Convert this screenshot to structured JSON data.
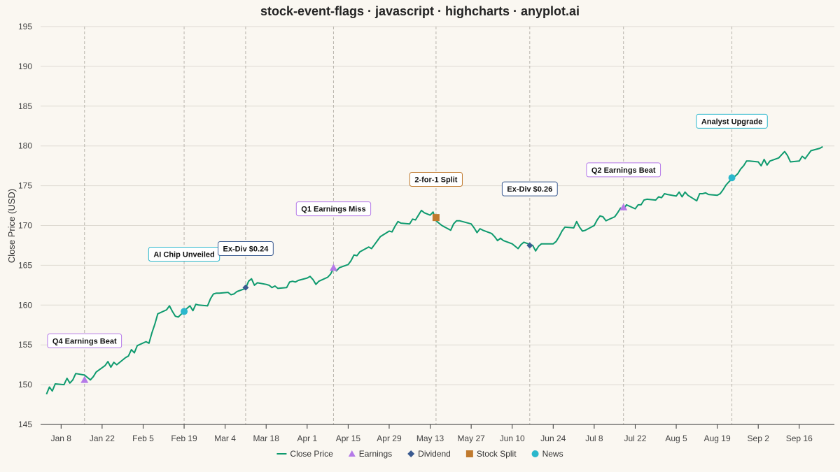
{
  "chart_data": {
    "type": "line",
    "title": "stock-event-flags · javascript · highcharts · anyplot.ai",
    "xlabel": "",
    "ylabel": "Close Price (USD)",
    "ylim": [
      145,
      195
    ],
    "yticks": [
      145,
      150,
      155,
      160,
      165,
      170,
      175,
      180,
      185,
      190,
      195
    ],
    "xlim": [
      "2024-01-01",
      "2024-09-28"
    ],
    "xticks": [
      {
        "date": "2024-01-08",
        "label": "Jan 8"
      },
      {
        "date": "2024-01-22",
        "label": "Jan 22"
      },
      {
        "date": "2024-02-05",
        "label": "Feb 5"
      },
      {
        "date": "2024-02-19",
        "label": "Feb 19"
      },
      {
        "date": "2024-03-04",
        "label": "Mar 4"
      },
      {
        "date": "2024-03-18",
        "label": "Mar 18"
      },
      {
        "date": "2024-04-01",
        "label": "Apr 1"
      },
      {
        "date": "2024-04-15",
        "label": "Apr 15"
      },
      {
        "date": "2024-04-29",
        "label": "Apr 29"
      },
      {
        "date": "2024-05-13",
        "label": "May 13"
      },
      {
        "date": "2024-05-27",
        "label": "May 27"
      },
      {
        "date": "2024-06-10",
        "label": "Jun 10"
      },
      {
        "date": "2024-06-24",
        "label": "Jun 24"
      },
      {
        "date": "2024-07-08",
        "label": "Jul 8"
      },
      {
        "date": "2024-07-22",
        "label": "Jul 22"
      },
      {
        "date": "2024-08-05",
        "label": "Aug 5"
      },
      {
        "date": "2024-08-19",
        "label": "Aug 19"
      },
      {
        "date": "2024-09-02",
        "label": "Sep 2"
      },
      {
        "date": "2024-09-16",
        "label": "Sep 16"
      }
    ],
    "grid": true,
    "legend_position": "bottom-center",
    "series": [
      {
        "name": "Close Price",
        "color": "#0e9a6e",
        "points": [
          [
            "2024-01-03",
            148.8
          ],
          [
            "2024-01-04",
            149.7
          ],
          [
            "2024-01-05",
            149.2
          ],
          [
            "2024-01-06",
            150.1
          ],
          [
            "2024-01-09",
            150.0
          ],
          [
            "2024-01-10",
            150.8
          ],
          [
            "2024-01-11",
            150.2
          ],
          [
            "2024-01-12",
            150.6
          ],
          [
            "2024-01-13",
            151.4
          ],
          [
            "2024-01-16",
            151.2
          ],
          [
            "2024-01-17",
            150.9
          ],
          [
            "2024-01-18",
            150.6
          ],
          [
            "2024-01-19",
            151.0
          ],
          [
            "2024-01-20",
            151.6
          ],
          [
            "2024-01-23",
            152.4
          ],
          [
            "2024-01-24",
            152.9
          ],
          [
            "2024-01-25",
            152.2
          ],
          [
            "2024-01-26",
            152.8
          ],
          [
            "2024-01-27",
            152.5
          ],
          [
            "2024-01-30",
            153.4
          ],
          [
            "2024-01-31",
            153.6
          ],
          [
            "2024-02-01",
            154.4
          ],
          [
            "2024-02-02",
            154.0
          ],
          [
            "2024-02-03",
            154.9
          ],
          [
            "2024-02-06",
            155.4
          ],
          [
            "2024-02-07",
            155.2
          ],
          [
            "2024-02-08",
            156.5
          ],
          [
            "2024-02-09",
            157.6
          ],
          [
            "2024-02-10",
            158.9
          ],
          [
            "2024-02-13",
            159.4
          ],
          [
            "2024-02-14",
            159.9
          ],
          [
            "2024-02-15",
            159.2
          ],
          [
            "2024-02-16",
            158.6
          ],
          [
            "2024-02-17",
            158.5
          ],
          [
            "2024-02-19",
            159.2
          ],
          [
            "2024-02-20",
            159.6
          ],
          [
            "2024-02-21",
            159.9
          ],
          [
            "2024-02-22",
            159.3
          ],
          [
            "2024-02-23",
            160.1
          ],
          [
            "2024-02-24",
            160.0
          ],
          [
            "2024-02-27",
            159.9
          ],
          [
            "2024-02-28",
            160.8
          ],
          [
            "2024-02-29",
            161.4
          ],
          [
            "2024-03-01",
            161.5
          ],
          [
            "2024-03-02",
            161.5
          ],
          [
            "2024-03-05",
            161.6
          ],
          [
            "2024-03-06",
            161.3
          ],
          [
            "2024-03-07",
            161.4
          ],
          [
            "2024-03-08",
            161.7
          ],
          [
            "2024-03-11",
            162.1
          ],
          [
            "2024-03-12",
            163.0
          ],
          [
            "2024-03-13",
            163.3
          ],
          [
            "2024-03-14",
            162.5
          ],
          [
            "2024-03-15",
            162.8
          ],
          [
            "2024-03-18",
            162.6
          ],
          [
            "2024-03-19",
            162.5
          ],
          [
            "2024-03-20",
            162.2
          ],
          [
            "2024-03-21",
            162.4
          ],
          [
            "2024-03-22",
            162.1
          ],
          [
            "2024-03-25",
            162.2
          ],
          [
            "2024-03-26",
            162.9
          ],
          [
            "2024-03-27",
            163.0
          ],
          [
            "2024-03-28",
            162.9
          ],
          [
            "2024-03-29",
            163.1
          ],
          [
            "2024-04-01",
            163.4
          ],
          [
            "2024-04-02",
            163.6
          ],
          [
            "2024-04-03",
            163.2
          ],
          [
            "2024-04-04",
            162.6
          ],
          [
            "2024-04-05",
            163.0
          ],
          [
            "2024-04-08",
            163.5
          ],
          [
            "2024-04-09",
            163.9
          ],
          [
            "2024-04-10",
            164.6
          ],
          [
            "2024-04-11",
            164.3
          ],
          [
            "2024-04-12",
            164.7
          ],
          [
            "2024-04-15",
            165.1
          ],
          [
            "2024-04-16",
            165.6
          ],
          [
            "2024-04-17",
            166.3
          ],
          [
            "2024-04-18",
            166.2
          ],
          [
            "2024-04-19",
            166.7
          ],
          [
            "2024-04-22",
            167.3
          ],
          [
            "2024-04-23",
            167.1
          ],
          [
            "2024-04-24",
            167.6
          ],
          [
            "2024-04-25",
            168.1
          ],
          [
            "2024-04-26",
            168.6
          ],
          [
            "2024-04-29",
            169.3
          ],
          [
            "2024-04-30",
            169.2
          ],
          [
            "2024-05-01",
            169.9
          ],
          [
            "2024-05-02",
            170.5
          ],
          [
            "2024-05-03",
            170.3
          ],
          [
            "2024-05-06",
            170.2
          ],
          [
            "2024-05-07",
            170.8
          ],
          [
            "2024-05-08",
            170.7
          ],
          [
            "2024-05-09",
            171.3
          ],
          [
            "2024-05-10",
            171.9
          ],
          [
            "2024-05-11",
            171.6
          ],
          [
            "2024-05-13",
            171.3
          ],
          [
            "2024-05-14",
            171.7
          ],
          [
            "2024-05-15",
            170.6
          ],
          [
            "2024-05-16",
            170.3
          ],
          [
            "2024-05-17",
            170.0
          ],
          [
            "2024-05-20",
            169.4
          ],
          [
            "2024-05-21",
            170.2
          ],
          [
            "2024-05-22",
            170.6
          ],
          [
            "2024-05-23",
            170.6
          ],
          [
            "2024-05-24",
            170.5
          ],
          [
            "2024-05-27",
            170.2
          ],
          [
            "2024-05-28",
            169.7
          ],
          [
            "2024-05-29",
            169.1
          ],
          [
            "2024-05-30",
            169.6
          ],
          [
            "2024-05-31",
            169.4
          ],
          [
            "2024-06-03",
            169.0
          ],
          [
            "2024-06-04",
            168.6
          ],
          [
            "2024-06-05",
            168.1
          ],
          [
            "2024-06-06",
            168.4
          ],
          [
            "2024-06-07",
            168.1
          ],
          [
            "2024-06-10",
            167.7
          ],
          [
            "2024-06-11",
            167.4
          ],
          [
            "2024-06-12",
            167.1
          ],
          [
            "2024-06-13",
            167.6
          ],
          [
            "2024-06-14",
            167.9
          ],
          [
            "2024-06-17",
            167.5
          ],
          [
            "2024-06-18",
            166.8
          ],
          [
            "2024-06-19",
            167.4
          ],
          [
            "2024-06-20",
            167.7
          ],
          [
            "2024-06-21",
            167.7
          ],
          [
            "2024-06-24",
            167.7
          ],
          [
            "2024-06-25",
            168.0
          ],
          [
            "2024-06-26",
            168.6
          ],
          [
            "2024-06-27",
            169.3
          ],
          [
            "2024-06-28",
            169.8
          ],
          [
            "2024-07-01",
            169.7
          ],
          [
            "2024-07-02",
            170.5
          ],
          [
            "2024-07-03",
            169.8
          ],
          [
            "2024-07-04",
            169.3
          ],
          [
            "2024-07-05",
            169.4
          ],
          [
            "2024-07-08",
            170.0
          ],
          [
            "2024-07-09",
            170.7
          ],
          [
            "2024-07-10",
            171.2
          ],
          [
            "2024-07-11",
            171.1
          ],
          [
            "2024-07-12",
            170.6
          ],
          [
            "2024-07-15",
            171.1
          ],
          [
            "2024-07-16",
            171.6
          ],
          [
            "2024-07-17",
            172.2
          ],
          [
            "2024-07-18",
            172.0
          ],
          [
            "2024-07-19",
            172.6
          ],
          [
            "2024-07-22",
            172.1
          ],
          [
            "2024-07-23",
            172.6
          ],
          [
            "2024-07-24",
            172.6
          ],
          [
            "2024-07-25",
            173.2
          ],
          [
            "2024-07-26",
            173.3
          ],
          [
            "2024-07-29",
            173.2
          ],
          [
            "2024-07-30",
            173.6
          ],
          [
            "2024-07-31",
            173.5
          ],
          [
            "2024-08-01",
            174.0
          ],
          [
            "2024-08-02",
            173.9
          ],
          [
            "2024-08-05",
            173.7
          ],
          [
            "2024-08-06",
            174.2
          ],
          [
            "2024-08-07",
            173.6
          ],
          [
            "2024-08-08",
            174.2
          ],
          [
            "2024-08-09",
            173.8
          ],
          [
            "2024-08-12",
            173.1
          ],
          [
            "2024-08-13",
            174.0
          ],
          [
            "2024-08-14",
            174.0
          ],
          [
            "2024-08-15",
            174.1
          ],
          [
            "2024-08-16",
            173.9
          ],
          [
            "2024-08-19",
            173.8
          ],
          [
            "2024-08-20",
            174.0
          ],
          [
            "2024-08-21",
            174.5
          ],
          [
            "2024-08-22",
            175.1
          ],
          [
            "2024-08-23",
            175.5
          ],
          [
            "2024-08-26",
            176.5
          ],
          [
            "2024-08-27",
            177.1
          ],
          [
            "2024-08-28",
            177.5
          ],
          [
            "2024-08-29",
            178.1
          ],
          [
            "2024-08-30",
            178.1
          ],
          [
            "2024-09-02",
            178.0
          ],
          [
            "2024-09-03",
            177.5
          ],
          [
            "2024-09-04",
            178.3
          ],
          [
            "2024-09-05",
            177.6
          ],
          [
            "2024-09-06",
            178.1
          ],
          [
            "2024-09-09",
            178.5
          ],
          [
            "2024-09-10",
            178.9
          ],
          [
            "2024-09-11",
            179.3
          ],
          [
            "2024-09-12",
            178.8
          ],
          [
            "2024-09-13",
            178.0
          ],
          [
            "2024-09-16",
            178.1
          ],
          [
            "2024-09-17",
            178.7
          ],
          [
            "2024-09-18",
            178.4
          ],
          [
            "2024-09-19",
            178.9
          ],
          [
            "2024-09-20",
            179.4
          ],
          [
            "2024-09-23",
            179.7
          ],
          [
            "2024-09-24",
            179.9
          ]
        ]
      }
    ],
    "event_types": [
      {
        "name": "Earnings",
        "color": "#b57ae8",
        "shape": "triangle"
      },
      {
        "name": "Dividend",
        "color": "#3a5a90",
        "shape": "diamond"
      },
      {
        "name": "Stock Split",
        "color": "#c07a2e",
        "shape": "square"
      },
      {
        "name": "News",
        "color": "#2ab7cc",
        "shape": "circle"
      }
    ],
    "events": [
      {
        "date": "2024-01-16",
        "value": 150.6,
        "type": "Earnings",
        "label": "Q4 Earnings Beat",
        "label_y": 155.5
      },
      {
        "date": "2024-02-19",
        "value": 159.2,
        "type": "News",
        "label": "AI Chip Unveiled",
        "label_y": 166.4
      },
      {
        "date": "2024-03-11",
        "value": 162.2,
        "type": "Dividend",
        "label": "Ex-Div $0.24",
        "label_y": 167.1
      },
      {
        "date": "2024-04-10",
        "value": 164.7,
        "type": "Earnings",
        "label": "Q1 Earnings Miss",
        "label_y": 172.1
      },
      {
        "date": "2024-05-15",
        "value": 171.0,
        "type": "Stock Split",
        "label": "2-for-1 Split",
        "label_y": 175.8
      },
      {
        "date": "2024-06-16",
        "value": 167.5,
        "type": "Dividend",
        "label": "Ex-Div $0.26",
        "label_y": 174.6
      },
      {
        "date": "2024-07-18",
        "value": 172.3,
        "type": "Earnings",
        "label": "Q2 Earnings Beat",
        "label_y": 177.0
      },
      {
        "date": "2024-08-24",
        "value": 176.0,
        "type": "News",
        "label": "Analyst Upgrade",
        "label_y": 183.1
      }
    ]
  },
  "legend": {
    "items": [
      {
        "label": "Close Price",
        "color": "#0e9a6e",
        "shape": "line"
      },
      {
        "label": "Earnings",
        "color": "#b57ae8",
        "shape": "triangle"
      },
      {
        "label": "Dividend",
        "color": "#3a5a90",
        "shape": "diamond"
      },
      {
        "label": "Stock Split",
        "color": "#c07a2e",
        "shape": "square"
      },
      {
        "label": "News",
        "color": "#2ab7cc",
        "shape": "circle"
      }
    ]
  }
}
